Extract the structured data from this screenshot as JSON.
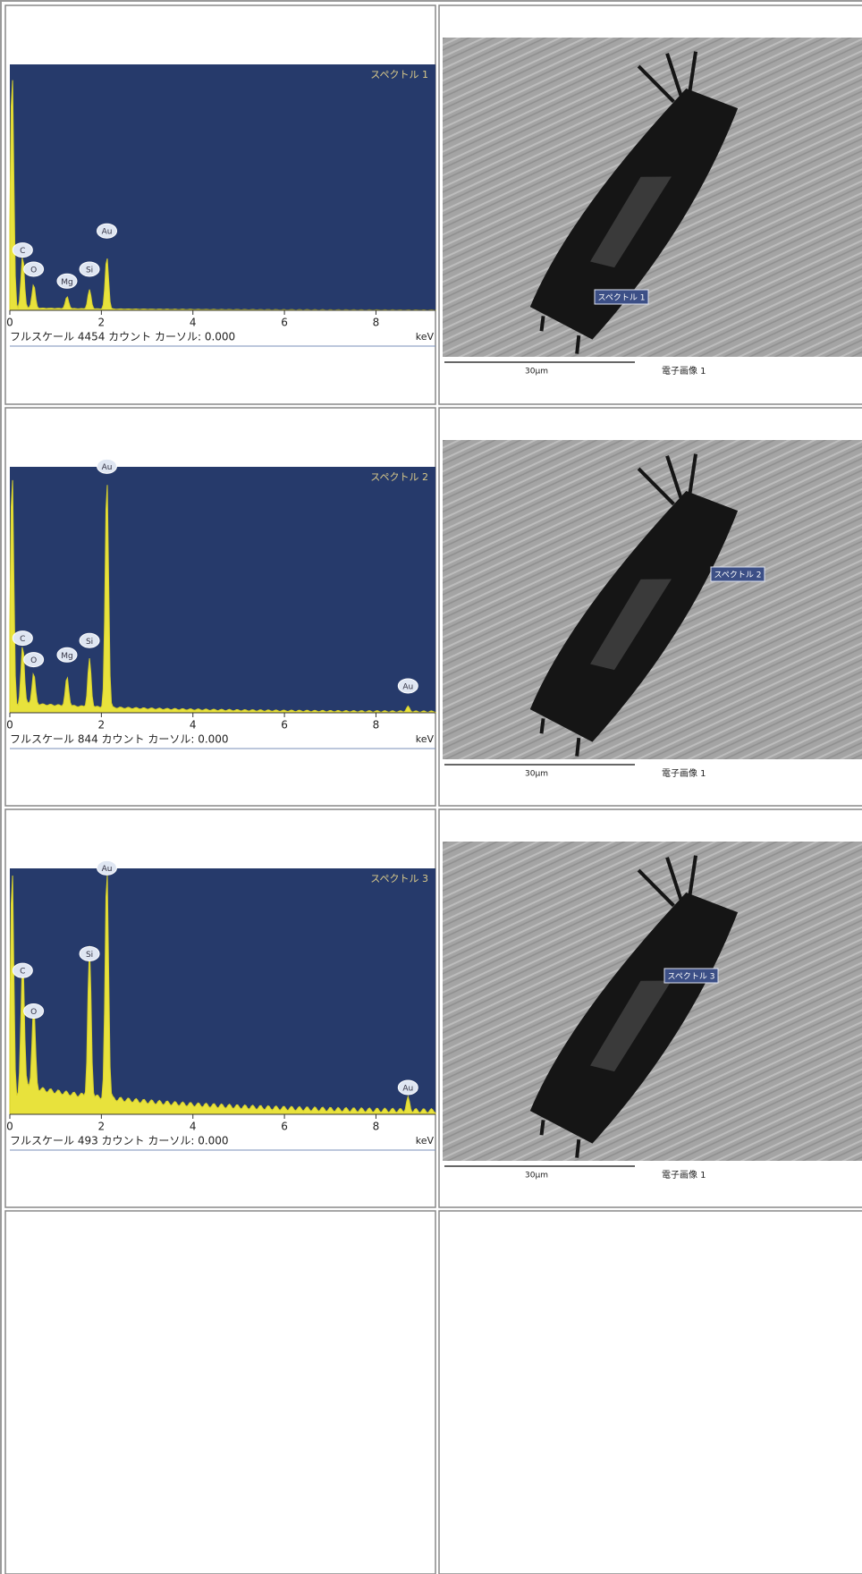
{
  "rows": [
    {
      "spectrum": {
        "title": "スペクトル 1",
        "caption": "フルスケール 4454 カウント カーソル: 0.000",
        "ticks": [
          "0",
          "2",
          "4",
          "6",
          "8"
        ],
        "unit": "keV",
        "peaks": [
          "C",
          "O",
          "Mg",
          "Si",
          "Au"
        ]
      },
      "image": {
        "marker": "スペクトル 1",
        "scale": "30μm",
        "caption": "電子画像 1"
      }
    },
    {
      "spectrum": {
        "title": "スペクトル 2",
        "caption": "フルスケール 844 カウント カーソル: 0.000",
        "ticks": [
          "0",
          "2",
          "4",
          "6",
          "8"
        ],
        "unit": "keV",
        "peaks": [
          "C",
          "O",
          "Mg",
          "Si",
          "Au",
          "Au"
        ]
      },
      "image": {
        "marker": "スペクトル 2",
        "scale": "30μm",
        "caption": "電子画像 1"
      }
    },
    {
      "spectrum": {
        "title": "スペクトル 3",
        "caption": "フルスケール 493 カウント カーソル: 0.000",
        "ticks": [
          "0",
          "2",
          "4",
          "6",
          "8"
        ],
        "unit": "keV",
        "peaks": [
          "C",
          "O",
          "Si",
          "Au",
          "Au"
        ]
      },
      "image": {
        "marker": "スペクトル 3",
        "scale": "30μm",
        "caption": "電子画像 1"
      }
    }
  ]
}
